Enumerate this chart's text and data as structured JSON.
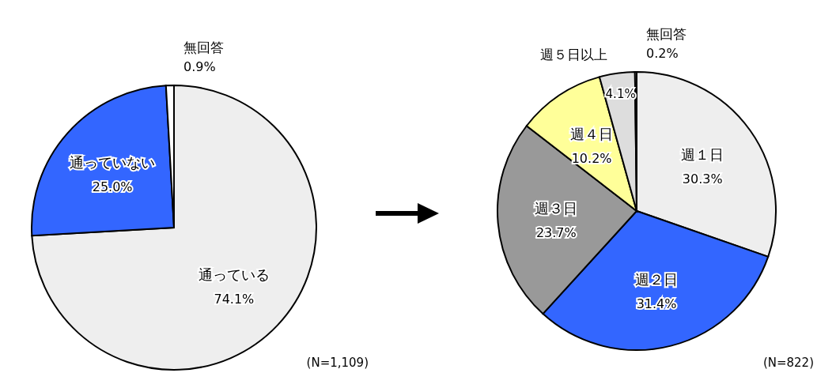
{
  "chart_data": [
    {
      "type": "pie",
      "categories": [
        "通っている",
        "通っていない",
        "無回答"
      ],
      "values": [
        74.1,
        25.0,
        0.9
      ],
      "colors": [
        "#eeeeee",
        "#3366ff",
        "#ffffff"
      ],
      "value_labels": [
        "74.1%",
        "25.0%",
        "0.9%"
      ],
      "annotations": [
        "(N=1,109)"
      ]
    },
    {
      "type": "pie",
      "categories": [
        "週１日",
        "週２日",
        "週３日",
        "週４日",
        "週５日以上",
        "無回答"
      ],
      "values": [
        30.3,
        31.4,
        23.7,
        10.2,
        4.1,
        0.2
      ],
      "colors": [
        "#eeeeee",
        "#3366ff",
        "#999999",
        "#ffff99",
        "#dddddd",
        "#ffffff"
      ],
      "value_labels": [
        "30.3%",
        "31.4%",
        "23.7%",
        "10.2%",
        "4.1%",
        "0.2%"
      ],
      "annotations": [
        "(N=822)"
      ]
    }
  ]
}
